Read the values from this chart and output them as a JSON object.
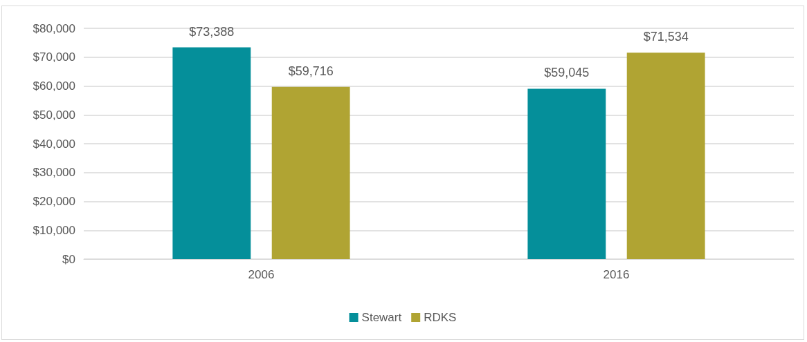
{
  "chart_data": {
    "type": "bar",
    "categories": [
      "2006",
      "2016"
    ],
    "series": [
      {
        "name": "Stewart",
        "color": "#058f9a",
        "values": [
          73388,
          59045
        ],
        "value_labels": [
          "$73,388",
          "$59,045"
        ]
      },
      {
        "name": "RDKS",
        "color": "#b0a433",
        "values": [
          59716,
          71534
        ],
        "value_labels": [
          "$59,716",
          "$71,534"
        ]
      }
    ],
    "ylim": [
      0,
      80000
    ],
    "yticks": [
      {
        "value": 0,
        "label": "$0"
      },
      {
        "value": 10000,
        "label": "$10,000"
      },
      {
        "value": 20000,
        "label": "$20,000"
      },
      {
        "value": 30000,
        "label": "$30,000"
      },
      {
        "value": 40000,
        "label": "$40,000"
      },
      {
        "value": 50000,
        "label": "$50,000"
      },
      {
        "value": 60000,
        "label": "$60,000"
      },
      {
        "value": 70000,
        "label": "$70,000"
      },
      {
        "value": 80000,
        "label": "$80,000"
      }
    ],
    "grid": "y",
    "legend": "bottom"
  }
}
